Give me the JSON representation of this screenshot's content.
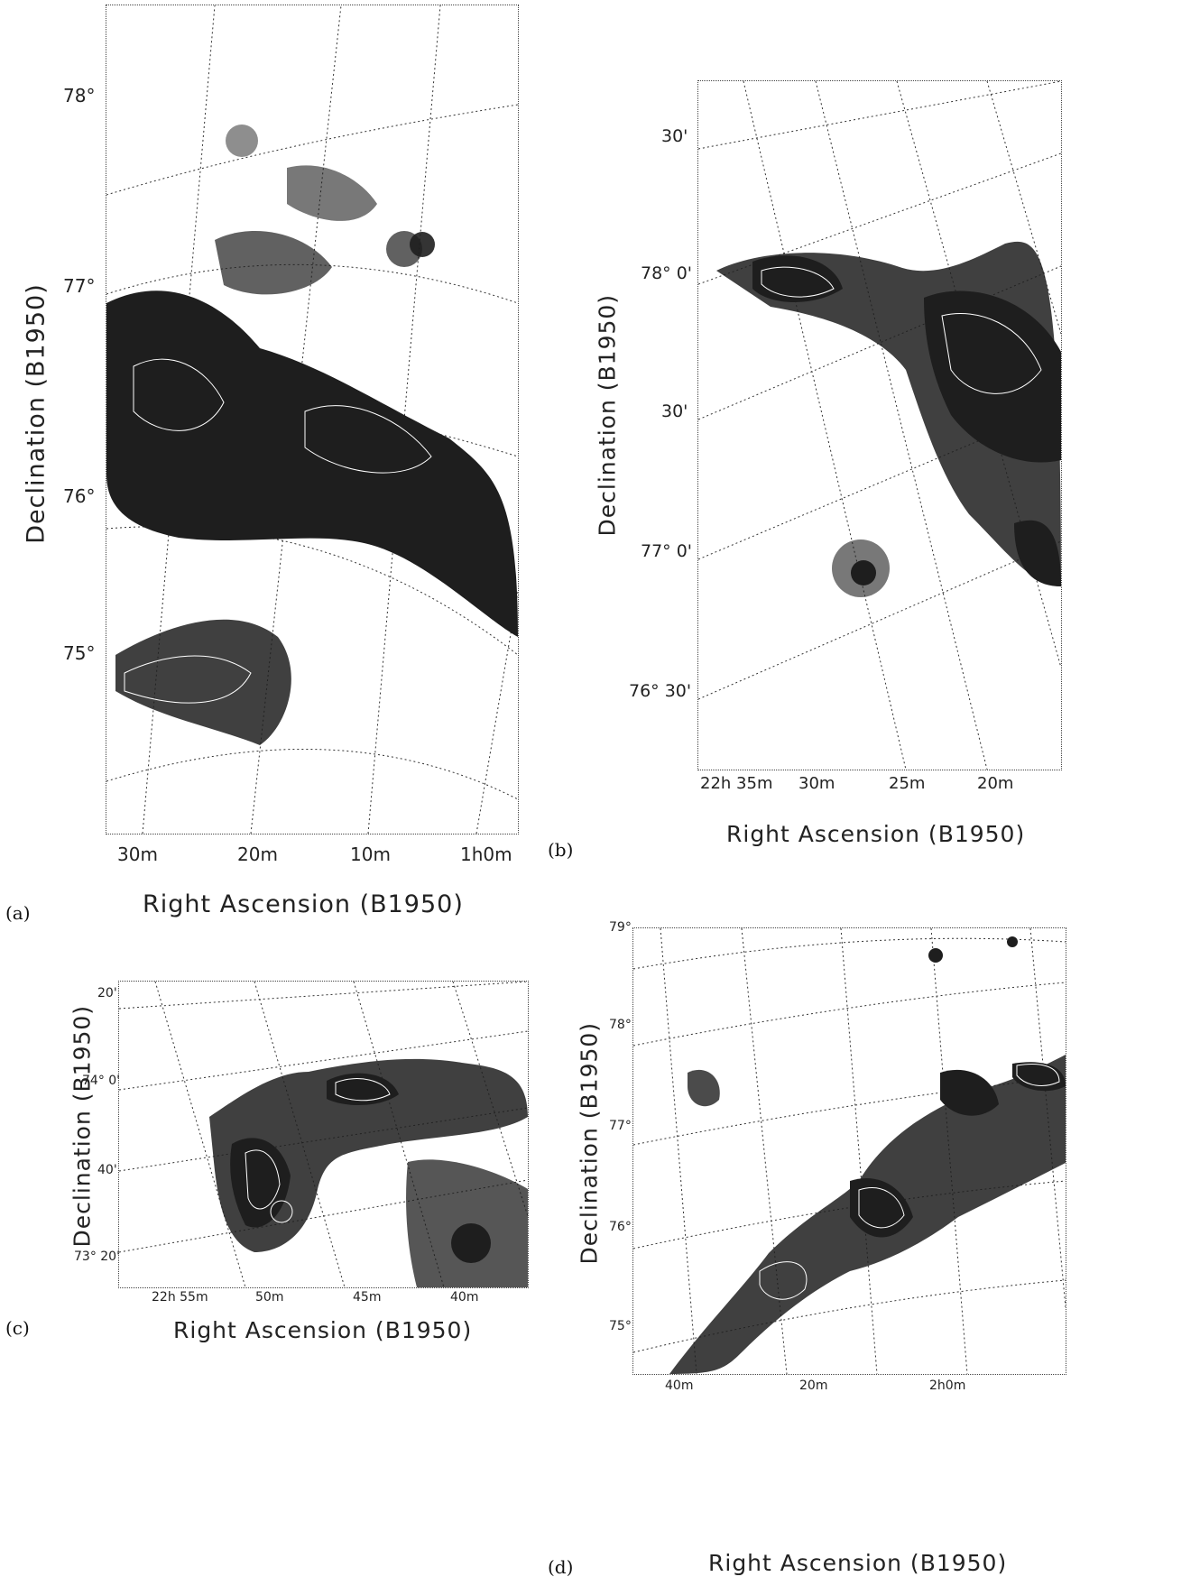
{
  "figure": {
    "panels": [
      {
        "id": "a",
        "label": "(a)",
        "xlabel": "Right Ascension (B1950)",
        "ylabel": "Declination (B1950)",
        "yticks": [
          "78°",
          "77°",
          "76°",
          "75°"
        ],
        "xticks": [
          "30m",
          "20m",
          "10m",
          "1h0m"
        ]
      },
      {
        "id": "b",
        "label": "(b)",
        "xlabel": "Right Ascension (B1950)",
        "ylabel": "Declination (B1950)",
        "yticks": [
          "30'",
          "78° 0'",
          "30'",
          "77° 0'",
          "76° 30'"
        ],
        "xticks": [
          "22h 35m",
          "30m",
          "25m",
          "20m"
        ]
      },
      {
        "id": "c",
        "label": "(c)",
        "xlabel": "Right Ascension (B1950)",
        "ylabel": "Declination (B1950)",
        "yticks": [
          "20'",
          "74° 0'",
          "40'",
          "73° 20'"
        ],
        "xticks": [
          "22h 55m",
          "50m",
          "45m",
          "40m"
        ]
      },
      {
        "id": "d",
        "label": "(d)",
        "xlabel": "Right Ascension (B1950)",
        "ylabel": "Declination (B1950)",
        "yticks": [
          "79°",
          "78°",
          "77°",
          "76°",
          "75°"
        ],
        "xticks": [
          "40m",
          "20m",
          "2h0m"
        ]
      }
    ]
  },
  "colors": {
    "ink": "#111111",
    "grid": "#333333",
    "cloud_dark": "#1e1e1e",
    "contour": "#ffffff"
  }
}
